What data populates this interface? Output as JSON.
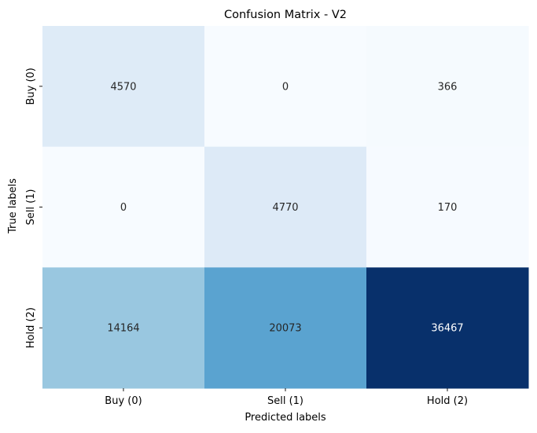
{
  "chart_data": {
    "type": "heatmap",
    "title": "Confusion Matrix - V2",
    "xlabel": "Predicted labels",
    "ylabel": "True labels",
    "x_categories": [
      "Buy (0)",
      "Sell (1)",
      "Hold (2)"
    ],
    "y_categories": [
      "Buy (0)",
      "Sell (1)",
      "Hold (2)"
    ],
    "values": [
      [
        4570,
        0,
        366
      ],
      [
        0,
        4770,
        170
      ],
      [
        14164,
        20073,
        36467
      ]
    ],
    "colormap": "Blues",
    "color_range": [
      0,
      36467
    ],
    "colorbar": false,
    "annotations": true
  }
}
